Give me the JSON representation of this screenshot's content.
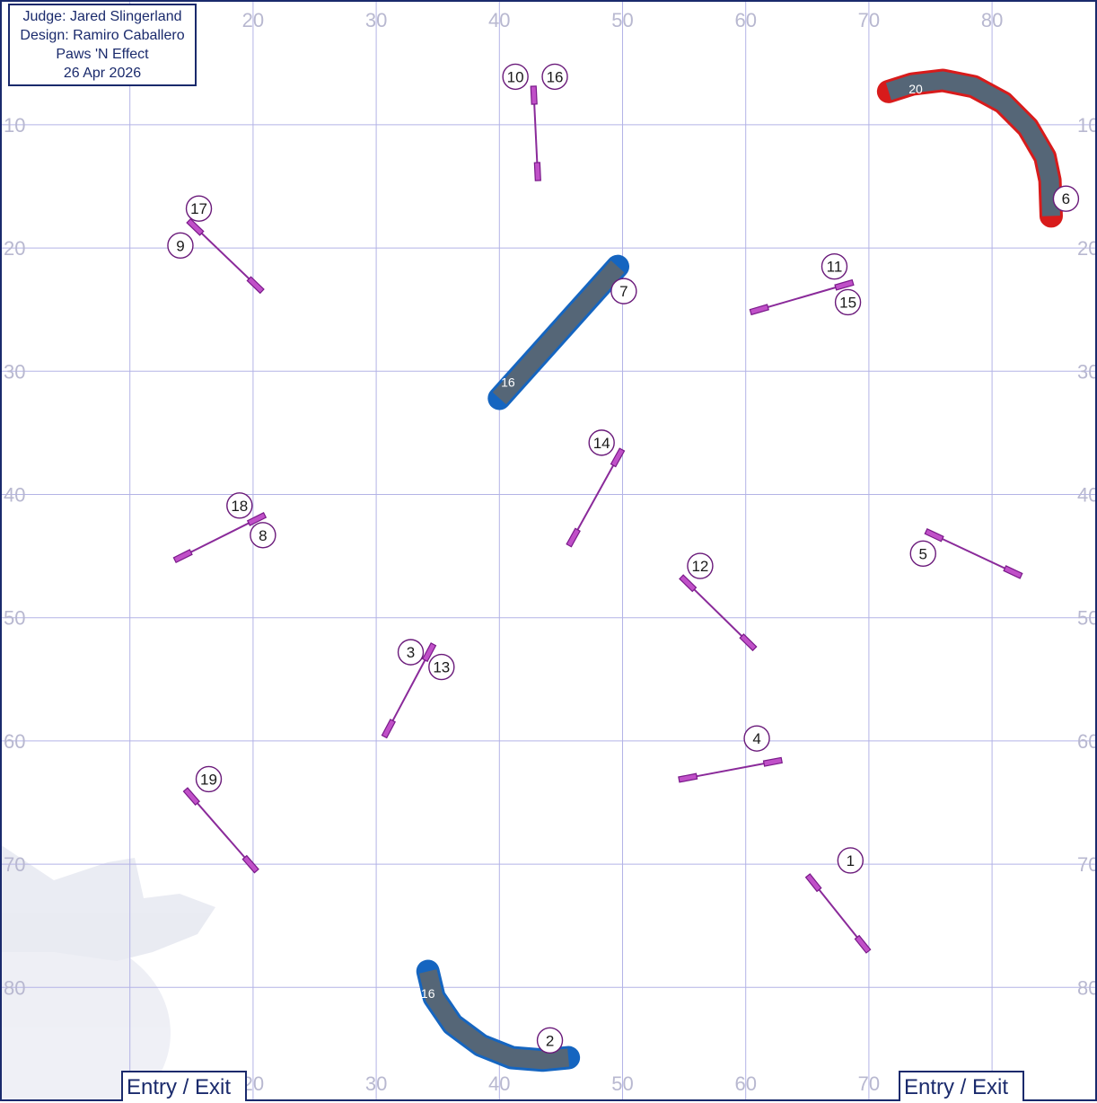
{
  "info": {
    "judge": "Judge: Jared Slingerland",
    "design": "Design: Ramiro Caballero",
    "club": "Paws 'N Effect",
    "date": "26 Apr 2026"
  },
  "entry_labels": [
    "Entry / Exit",
    "Entry / Exit"
  ],
  "colors": {
    "jump": "#8a2a9a",
    "blue_tunnel": "#1565c0",
    "red_tunnel": "#d81b1b",
    "tunnel_fill": "#556677",
    "grid": "#b3b3e6",
    "border": "#1a2a6c"
  },
  "grid": {
    "x_ticks": [
      20,
      30,
      40,
      50,
      60,
      70,
      80
    ],
    "y_ticks": [
      10,
      20,
      30,
      40,
      50,
      60,
      70,
      80
    ]
  },
  "jumps": [
    {
      "id": "j1",
      "from": [
        65.5,
        71.5
      ],
      "to": [
        69.5,
        76.5
      ],
      "labels": [
        {
          "text": "1",
          "at": [
            68.5,
            69.7
          ]
        }
      ]
    },
    {
      "id": "j3",
      "from": [
        31,
        59
      ],
      "to": [
        34.3,
        52.8
      ],
      "labels": [
        {
          "text": "3",
          "at": [
            32.8,
            52.8
          ]
        },
        {
          "text": "13",
          "at": [
            35.3,
            54.0
          ]
        }
      ]
    },
    {
      "id": "j4",
      "from": [
        55.3,
        63.0
      ],
      "to": [
        62.2,
        61.7
      ],
      "labels": [
        {
          "text": "4",
          "at": [
            60.9,
            59.8
          ]
        }
      ]
    },
    {
      "id": "j5",
      "from": [
        75.3,
        43.3
      ],
      "to": [
        81.7,
        46.3
      ],
      "labels": [
        {
          "text": "5",
          "at": [
            74.4,
            44.8
          ]
        }
      ]
    },
    {
      "id": "j8",
      "from": [
        14.3,
        45.0
      ],
      "to": [
        20.3,
        42.0
      ],
      "labels": [
        {
          "text": "18",
          "at": [
            18.9,
            40.9
          ]
        },
        {
          "text": "8",
          "at": [
            20.8,
            43.3
          ]
        }
      ]
    },
    {
      "id": "j9",
      "from": [
        15.3,
        18.3
      ],
      "to": [
        20.2,
        23.0
      ],
      "labels": [
        {
          "text": "17",
          "at": [
            15.6,
            16.8
          ]
        },
        {
          "text": "9",
          "at": [
            14.1,
            19.8
          ]
        }
      ]
    },
    {
      "id": "j10",
      "from": [
        42.8,
        7.6
      ],
      "to": [
        43.1,
        13.8
      ],
      "labels": [
        {
          "text": "10",
          "at": [
            41.3,
            6.1
          ]
        },
        {
          "text": "16",
          "at": [
            44.5,
            6.1
          ]
        }
      ]
    },
    {
      "id": "j11",
      "from": [
        61.1,
        25.0
      ],
      "to": [
        68.0,
        23.0
      ],
      "labels": [
        {
          "text": "11",
          "at": [
            67.2,
            21.5
          ]
        },
        {
          "text": "15",
          "at": [
            68.3,
            24.4
          ]
        }
      ]
    },
    {
      "id": "j12",
      "from": [
        55.3,
        47.2
      ],
      "to": [
        60.2,
        52.0
      ],
      "labels": [
        {
          "text": "12",
          "at": [
            56.3,
            45.8
          ]
        }
      ]
    },
    {
      "id": "j14",
      "from": [
        46.0,
        43.5
      ],
      "to": [
        49.6,
        37.0
      ],
      "labels": [
        {
          "text": "14",
          "at": [
            48.3,
            35.8
          ]
        }
      ]
    },
    {
      "id": "j19",
      "from": [
        15.0,
        64.5
      ],
      "to": [
        19.8,
        70.0
      ],
      "labels": [
        {
          "text": "19",
          "at": [
            16.4,
            63.1
          ]
        }
      ]
    }
  ],
  "tunnels": [
    {
      "id": "t7",
      "kind": "straight",
      "color": "blue",
      "points": [
        [
          40.0,
          32.2
        ],
        [
          49.6,
          21.5
        ]
      ],
      "length_label": "16",
      "length_at": [
        40.7,
        30.9
      ],
      "number": "7",
      "number_at": [
        50.1,
        23.5
      ]
    },
    {
      "id": "t2",
      "kind": "curved",
      "color": "blue",
      "points": [
        [
          34.2,
          78.7
        ],
        [
          34.7,
          80.8
        ],
        [
          36.2,
          83.0
        ],
        [
          38.5,
          84.7
        ],
        [
          41.0,
          85.7
        ],
        [
          43.5,
          85.9
        ],
        [
          45.6,
          85.7
        ]
      ],
      "length_label": "16",
      "length_at": [
        34.2,
        80.5
      ],
      "number": "2",
      "number_at": [
        44.1,
        84.3
      ]
    },
    {
      "id": "t6",
      "kind": "curved",
      "color": "red",
      "points": [
        [
          71.6,
          7.3
        ],
        [
          73.5,
          6.7
        ],
        [
          76.0,
          6.4
        ],
        [
          78.5,
          6.9
        ],
        [
          80.9,
          8.2
        ],
        [
          82.9,
          10.2
        ],
        [
          84.3,
          12.6
        ],
        [
          84.7,
          14.5
        ],
        [
          84.8,
          17.4
        ]
      ],
      "length_label": "20",
      "length_at": [
        73.8,
        7.1
      ],
      "number": "6",
      "number_at": [
        86.0,
        16.0
      ]
    }
  ]
}
